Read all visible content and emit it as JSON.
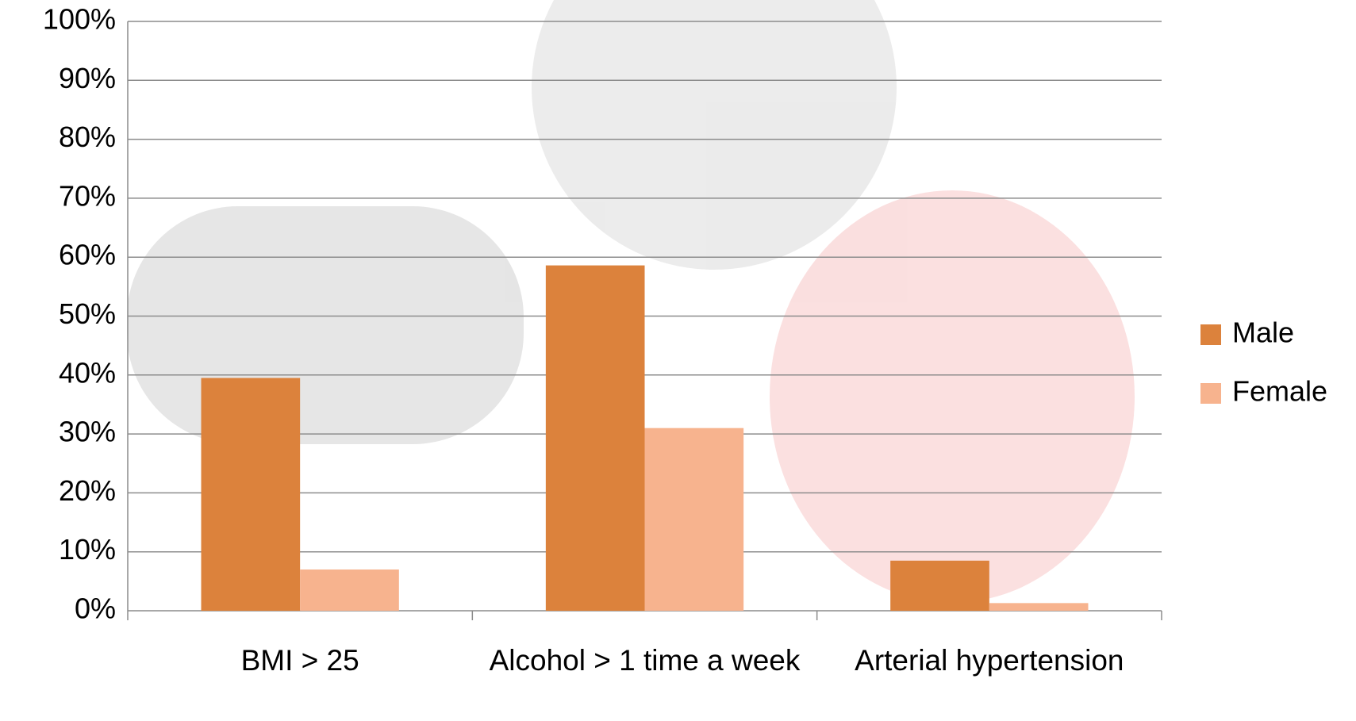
{
  "chart_data": {
    "type": "bar",
    "categories": [
      "BMI > 25",
      "Alcohol > 1 time a week",
      "Arterial hypertension"
    ],
    "series": [
      {
        "name": "Male",
        "color": "#dc823c",
        "values": [
          39.5,
          58.6,
          8.5
        ]
      },
      {
        "name": "Female",
        "color": "#f7b38e",
        "values": [
          7.0,
          31.0,
          1.3
        ]
      }
    ],
    "ylim": [
      0,
      100
    ],
    "yticks": [
      {
        "value": 0,
        "label": "0%"
      },
      {
        "value": 10,
        "label": "10%"
      },
      {
        "value": 20,
        "label": "20%"
      },
      {
        "value": 30,
        "label": "30%"
      },
      {
        "value": 40,
        "label": "40%"
      },
      {
        "value": 50,
        "label": "50%"
      },
      {
        "value": 60,
        "label": "60%"
      },
      {
        "value": 70,
        "label": "70%"
      },
      {
        "value": 80,
        "label": "80%"
      },
      {
        "value": 90,
        "label": "90%"
      },
      {
        "value": 100,
        "label": "100%"
      }
    ],
    "grid": true,
    "legend": "right"
  }
}
